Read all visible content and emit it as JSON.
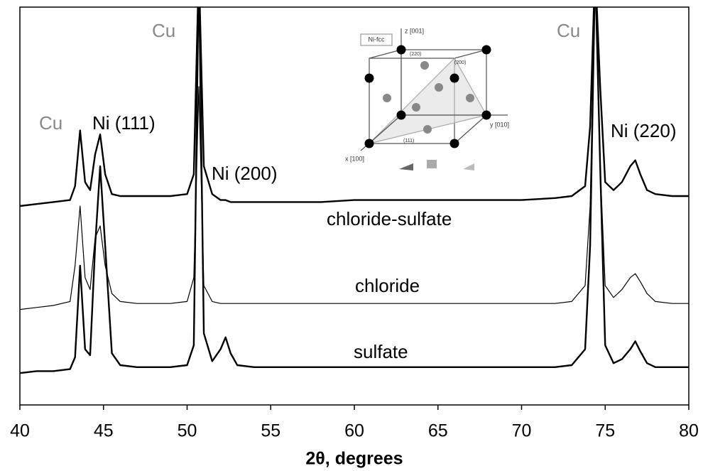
{
  "chart_data": {
    "type": "line",
    "xlabel": "2θ, degrees",
    "x": [
      40,
      41,
      42,
      43,
      43.3,
      43.6,
      43.9,
      44.2,
      44.5,
      44.8,
      45.1,
      45.5,
      46,
      47,
      48,
      49,
      50,
      50.4,
      50.7,
      51,
      51.5,
      52,
      52.3,
      52.6,
      53,
      54,
      56,
      58,
      60,
      62,
      64,
      66,
      68,
      70,
      72,
      73,
      73.8,
      74.1,
      74.4,
      74.7,
      75,
      75.5,
      76,
      76.5,
      76.8,
      77.1,
      77.5,
      78,
      79,
      80
    ],
    "series": [
      {
        "name": "chloride-sulfate",
        "color": "#000000",
        "values": [
          50,
          50.5,
          51,
          51.5,
          55,
          69,
          56,
          54,
          63,
          68,
          58,
          53,
          52.5,
          52.5,
          52.5,
          52.5,
          53,
          58,
          110,
          60,
          53,
          51.5,
          51.5,
          51,
          51,
          51,
          51,
          51,
          51.5,
          51.5,
          51.5,
          51.5,
          51.5,
          51.5,
          52,
          52.5,
          55,
          70,
          110,
          80,
          56,
          54,
          56,
          60,
          61.5,
          58,
          54,
          53,
          52.5,
          52.5
        ]
      },
      {
        "name": "chloride",
        "color": "#000000",
        "values": [
          24,
          24.5,
          25,
          26,
          35,
          50,
          32,
          29,
          42,
          45,
          35,
          28,
          26,
          25.5,
          25.5,
          25.5,
          26,
          32,
          80,
          30,
          26,
          25.5,
          25.5,
          25.5,
          25.5,
          25.5,
          25.5,
          25.5,
          25.5,
          25.5,
          25.5,
          25.5,
          25.5,
          25.5,
          25.5,
          26,
          30,
          50,
          110,
          60,
          30,
          27,
          29,
          32,
          33,
          31,
          28,
          26,
          25.5,
          25.5
        ]
      },
      {
        "name": "sulfate",
        "color": "#000000",
        "values": [
          8,
          8.5,
          8.5,
          9,
          12,
          35,
          14,
          12.5,
          40,
          60,
          40,
          13,
          10,
          9.5,
          9.5,
          9.5,
          10,
          15,
          110,
          18,
          11,
          14,
          17,
          13,
          10,
          9.5,
          9.5,
          9.5,
          9.5,
          9.5,
          9.5,
          9.5,
          9.5,
          9.5,
          9.5,
          10,
          14,
          40,
          110,
          60,
          15,
          10.5,
          11.5,
          14,
          16,
          13.5,
          10.5,
          9.5,
          9.5,
          9.5
        ]
      }
    ],
    "xlim": [
      40,
      80
    ],
    "ylim": [
      0,
      100
    ],
    "xticks": [
      40,
      45,
      50,
      55,
      60,
      65,
      70,
      75,
      80
    ],
    "annotations": [
      "Cu",
      "Ni (111)",
      "Cu",
      "Ni (200)",
      "Cu",
      "Ni (220)"
    ],
    "inset": {
      "title": "Ni-fcc",
      "z_axis": "z [001]",
      "y_axis": "y [010]",
      "x_axis": "x [100]",
      "planes": [
        "(220)",
        "(200)",
        "(111)"
      ]
    }
  }
}
